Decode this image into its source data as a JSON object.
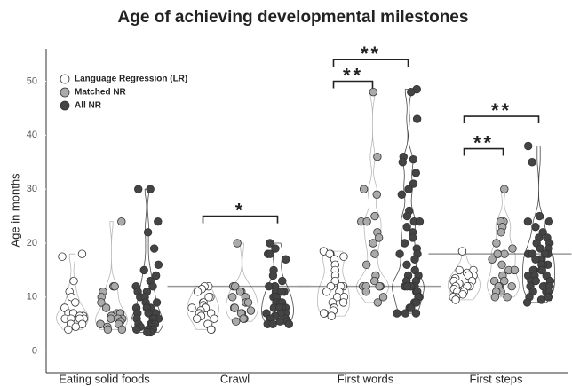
{
  "chart_data": {
    "type": "strip",
    "title": "Age of achieving developmental milestones",
    "y_label": "Age in months",
    "categories": [
      "Eating solid foods",
      "Crawl",
      "First words",
      "First steps"
    ],
    "ylim": [
      -4,
      56
    ],
    "yticks": [
      0,
      10,
      20,
      30,
      40,
      50
    ],
    "legend": "top-left",
    "series": [
      {
        "name": "Language Regression (LR)",
        "color": "#ffffff",
        "values": [
          [
            18,
            17.5,
            13,
            11,
            10,
            9,
            8,
            7,
            7,
            6.5,
            6.5,
            6,
            6,
            6,
            6,
            5,
            5,
            4.5,
            4
          ],
          [
            12,
            12,
            11.5,
            11,
            10,
            10,
            9,
            9,
            8.5,
            8,
            8,
            8,
            7.5,
            7,
            7,
            6.5,
            6,
            6,
            5,
            4,
            4
          ],
          [
            18.5,
            18,
            18,
            17.5,
            17,
            16,
            15,
            14,
            13,
            12,
            12,
            12,
            11,
            11,
            10,
            10,
            9,
            9,
            8,
            8,
            7.5,
            7,
            7,
            6.5
          ],
          [
            18.5,
            15,
            15,
            14.5,
            14,
            14,
            13.5,
            13,
            13,
            12.5,
            12,
            12,
            12,
            11.5,
            11,
            11,
            10.5,
            10,
            10,
            9.5
          ]
        ]
      },
      {
        "name": "Matched NR",
        "color": "#aaaaaa",
        "values": [
          [
            24,
            12,
            12,
            11,
            10,
            9,
            8,
            7,
            7,
            6.5,
            6,
            6,
            6,
            5.5,
            5,
            5,
            4.5,
            4,
            4
          ],
          [
            20,
            12,
            12,
            11,
            11,
            10,
            10,
            9,
            9,
            8,
            8,
            7.5,
            7,
            7,
            6,
            6,
            5.5
          ],
          [
            48,
            36,
            30,
            29,
            25,
            24,
            24,
            22,
            21,
            20,
            18,
            16,
            14,
            13,
            12,
            12,
            12,
            12,
            11,
            10,
            9
          ],
          [
            30,
            24,
            24,
            23,
            22,
            20,
            19,
            18,
            18,
            18,
            17,
            16,
            15,
            15,
            14,
            13,
            13,
            12,
            12,
            12,
            11,
            11,
            10,
            10
          ]
        ]
      },
      {
        "name": "All NR",
        "color": "#444444",
        "values": [
          [
            30,
            30,
            24,
            22,
            19,
            16,
            15,
            14,
            13,
            12,
            12,
            11,
            11,
            10,
            10,
            9,
            9,
            8,
            8,
            8,
            7,
            7,
            7,
            6,
            6,
            6,
            6,
            5,
            5,
            5,
            5,
            4.5,
            4.5,
            4,
            4,
            4,
            4,
            3.5,
            3.5
          ],
          [
            20,
            19,
            18,
            18,
            17,
            15,
            14,
            13,
            12,
            12,
            12,
            11,
            11,
            11,
            10,
            10,
            10,
            9,
            9,
            9,
            9,
            8,
            8,
            8,
            8,
            7,
            7,
            7,
            6.5,
            6,
            6,
            6,
            5.5,
            5.5,
            5,
            5,
            5
          ],
          [
            48.5,
            48,
            43,
            36,
            35.5,
            35,
            33,
            31,
            30,
            29,
            26,
            25,
            24,
            24,
            23,
            22,
            21,
            20,
            19,
            18,
            18,
            17,
            16,
            15,
            14,
            14,
            13,
            13,
            12,
            12,
            12,
            12,
            12,
            11,
            11,
            10,
            10,
            9,
            9,
            8,
            8,
            7,
            7,
            7
          ],
          [
            38,
            35,
            25,
            24,
            24,
            23,
            22,
            21,
            21,
            20,
            20,
            19,
            19,
            18,
            18,
            18,
            18,
            17,
            17,
            17,
            16,
            16,
            16,
            15,
            15,
            15,
            15,
            14,
            14,
            14,
            13,
            13,
            13,
            12,
            12,
            12,
            12,
            11,
            11,
            11,
            10,
            10,
            10,
            9.5,
            9
          ]
        ]
      }
    ],
    "reference_lines": [
      null,
      12,
      12,
      18
    ],
    "annotations": [
      {
        "text": "*",
        "category": 1,
        "from": 0,
        "to": 2,
        "y": 25
      },
      {
        "text": "**",
        "category": 2,
        "from": 0,
        "to": 1,
        "y": 50
      },
      {
        "text": "**",
        "category": 2,
        "from": 0,
        "to": 2,
        "y": 54
      },
      {
        "text": "**",
        "category": 3,
        "from": 0,
        "to": 1,
        "y": 37.5
      },
      {
        "text": "**",
        "category": 3,
        "from": 0,
        "to": 2,
        "y": 43.5
      }
    ]
  }
}
